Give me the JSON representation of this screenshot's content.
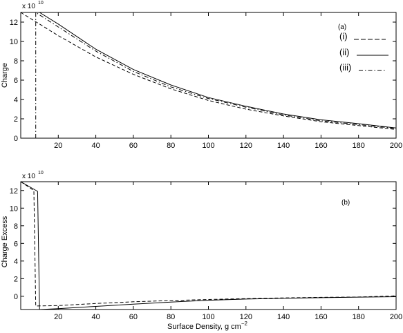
{
  "chart_data": [
    {
      "type": "line",
      "panel_label": "(a)",
      "ylabel": "Charge",
      "xlabel": "",
      "y_exponent_prefix": "x 10",
      "y_exponent_power": "10",
      "xlim": [
        0,
        200
      ],
      "ylim": [
        0,
        13
      ],
      "xticks": [
        20,
        40,
        60,
        80,
        100,
        120,
        140,
        160,
        180,
        200
      ],
      "yticks": [
        0,
        2,
        4,
        6,
        8,
        10,
        12
      ],
      "grid": false,
      "legend_position": "top-right",
      "series": [
        {
          "name": "(i)",
          "dash": "dashed",
          "x": [
            0,
            20,
            40,
            60,
            80,
            100,
            120,
            140,
            160,
            180,
            200
          ],
          "y": [
            13.1,
            10.6,
            8.4,
            6.6,
            5.1,
            3.9,
            3.0,
            2.3,
            1.7,
            1.3,
            0.9
          ]
        },
        {
          "name": "(ii)",
          "dash": "solid",
          "x": [
            0,
            10,
            10,
            20,
            40,
            60,
            80,
            100,
            120,
            140,
            160,
            180,
            200
          ],
          "y": [
            13.1,
            13.1,
            13.2,
            11.8,
            9.2,
            7.1,
            5.5,
            4.2,
            3.3,
            2.5,
            1.9,
            1.5,
            1.05
          ]
        },
        {
          "name": "(iii)",
          "dash": "dashdot",
          "x": [
            8,
            8,
            20,
            40,
            60,
            80,
            100,
            120,
            140,
            160,
            180,
            200
          ],
          "y": [
            0,
            13.0,
            11.5,
            9.0,
            6.9,
            5.3,
            4.1,
            3.2,
            2.4,
            1.8,
            1.4,
            1.0
          ]
        }
      ]
    },
    {
      "type": "line",
      "panel_label": "(b)",
      "ylabel": "Charge Excess",
      "xlabel": "Surface Density, g cm",
      "xlabel_sup": "−2",
      "y_exponent_prefix": "x 10",
      "y_exponent_power": "10",
      "xlim": [
        0,
        200
      ],
      "ylim": [
        -1.5,
        13
      ],
      "xticks": [
        20,
        40,
        60,
        80,
        100,
        120,
        140,
        160,
        180,
        200
      ],
      "yticks": [
        0,
        2,
        4,
        6,
        8,
        10,
        12
      ],
      "grid": false,
      "series": [
        {
          "dash": "solid",
          "x": [
            0,
            9,
            10,
            20,
            40,
            60,
            80,
            100,
            120,
            140,
            160,
            180,
            200
          ],
          "y": [
            13.1,
            11.9,
            -1.5,
            -1.4,
            -1.15,
            -0.9,
            -0.65,
            -0.45,
            -0.32,
            -0.22,
            -0.16,
            -0.1,
            -0.05
          ]
        },
        {
          "dash": "dashed",
          "x": [
            0,
            7,
            8,
            20,
            40,
            60,
            80,
            100,
            120,
            140,
            160,
            180,
            200
          ],
          "y": [
            13.1,
            12.0,
            -1.1,
            -1.05,
            -0.82,
            -0.62,
            -0.48,
            -0.36,
            -0.26,
            -0.18,
            -0.12,
            -0.08,
            0.05
          ]
        }
      ]
    }
  ]
}
